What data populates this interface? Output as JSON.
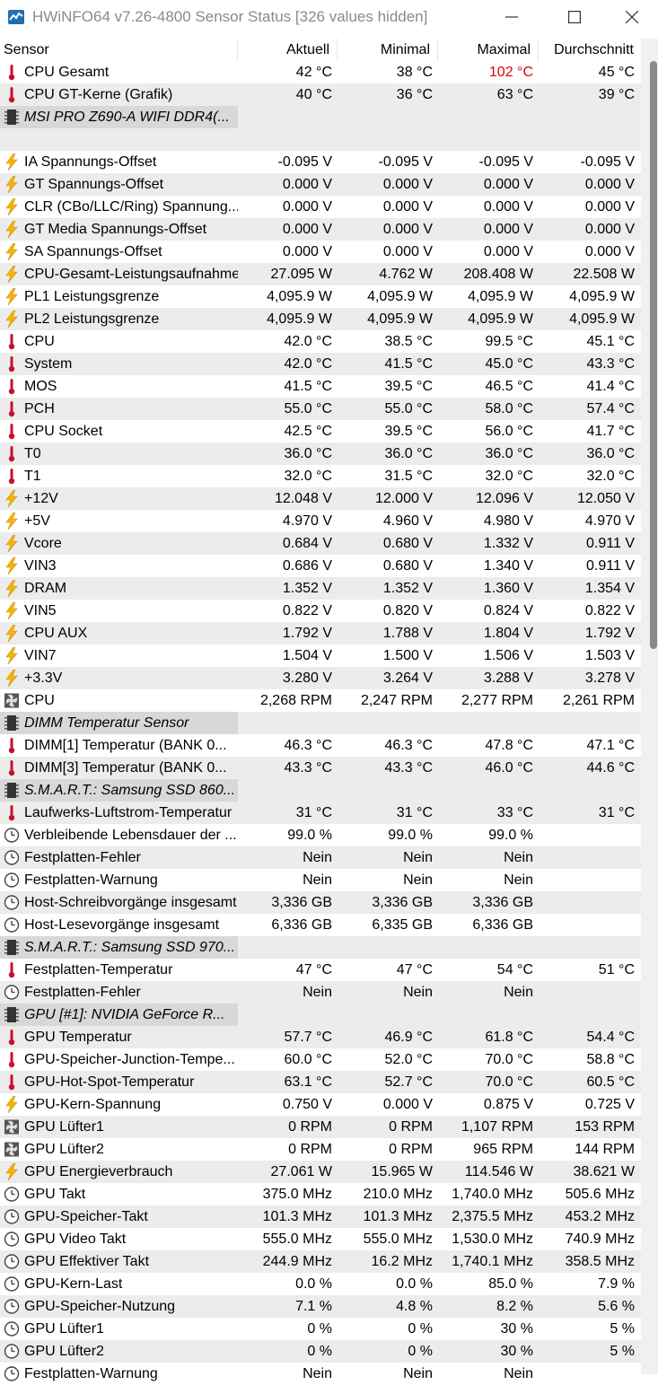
{
  "window": {
    "title": "HWiNFO64 v7.26-4800 Sensor Status [326 values hidden]"
  },
  "columns": [
    "Sensor",
    "Aktuell",
    "Minimal",
    "Maximal",
    "Durchschnitt"
  ],
  "colors": {
    "max_alert": "#e00000",
    "thermo": "#c8102e",
    "bolt": "#f2b705"
  },
  "rows": [
    {
      "icon": "thermometer-icon",
      "name": "CPU Gesamt",
      "v": [
        "42 °C",
        "38 °C",
        "102 °C",
        "45 °C"
      ],
      "alert": 2
    },
    {
      "icon": "thermometer-icon",
      "name": "CPU GT-Kerne (Grafik)",
      "v": [
        "40 °C",
        "36 °C",
        "63 °C",
        "39 °C"
      ]
    },
    {
      "icon": "chip-icon",
      "name": "MSI PRO Z690-A WIFI DDR4(...",
      "group": true,
      "v": [
        "",
        "",
        "",
        ""
      ]
    },
    {
      "icon": "",
      "name": "",
      "v": [
        "",
        "",
        "",
        ""
      ]
    },
    {
      "icon": "bolt-icon",
      "name": "IA Spannungs-Offset",
      "v": [
        "-0.095 V",
        "-0.095 V",
        "-0.095 V",
        "-0.095 V"
      ]
    },
    {
      "icon": "bolt-icon",
      "name": "GT Spannungs-Offset",
      "v": [
        "0.000 V",
        "0.000 V",
        "0.000 V",
        "0.000 V"
      ]
    },
    {
      "icon": "bolt-icon",
      "name": "CLR (CBo/LLC/Ring) Spannung...",
      "v": [
        "0.000 V",
        "0.000 V",
        "0.000 V",
        "0.000 V"
      ]
    },
    {
      "icon": "bolt-icon",
      "name": "GT Media Spannungs-Offset",
      "v": [
        "0.000 V",
        "0.000 V",
        "0.000 V",
        "0.000 V"
      ]
    },
    {
      "icon": "bolt-icon",
      "name": "SA Spannungs-Offset",
      "v": [
        "0.000 V",
        "0.000 V",
        "0.000 V",
        "0.000 V"
      ]
    },
    {
      "icon": "bolt-icon",
      "name": "CPU-Gesamt-Leistungsaufnahme",
      "v": [
        "27.095 W",
        "4.762 W",
        "208.408 W",
        "22.508 W"
      ]
    },
    {
      "icon": "bolt-icon",
      "name": "PL1 Leistungsgrenze",
      "v": [
        "4,095.9 W",
        "4,095.9 W",
        "4,095.9 W",
        "4,095.9 W"
      ]
    },
    {
      "icon": "bolt-icon",
      "name": "PL2 Leistungsgrenze",
      "v": [
        "4,095.9 W",
        "4,095.9 W",
        "4,095.9 W",
        "4,095.9 W"
      ]
    },
    {
      "icon": "thermometer-icon",
      "name": "CPU",
      "v": [
        "42.0 °C",
        "38.5 °C",
        "99.5 °C",
        "45.1 °C"
      ]
    },
    {
      "icon": "thermometer-icon",
      "name": "System",
      "v": [
        "42.0 °C",
        "41.5 °C",
        "45.0 °C",
        "43.3 °C"
      ]
    },
    {
      "icon": "thermometer-icon",
      "name": "MOS",
      "v": [
        "41.5 °C",
        "39.5 °C",
        "46.5 °C",
        "41.4 °C"
      ]
    },
    {
      "icon": "thermometer-icon",
      "name": "PCH",
      "v": [
        "55.0 °C",
        "55.0 °C",
        "58.0 °C",
        "57.4 °C"
      ]
    },
    {
      "icon": "thermometer-icon",
      "name": "CPU Socket",
      "v": [
        "42.5 °C",
        "39.5 °C",
        "56.0 °C",
        "41.7 °C"
      ]
    },
    {
      "icon": "thermometer-icon",
      "name": "T0",
      "v": [
        "36.0 °C",
        "36.0 °C",
        "36.0 °C",
        "36.0 °C"
      ]
    },
    {
      "icon": "thermometer-icon",
      "name": "T1",
      "v": [
        "32.0 °C",
        "31.5 °C",
        "32.0 °C",
        "32.0 °C"
      ]
    },
    {
      "icon": "bolt-icon",
      "name": "+12V",
      "v": [
        "12.048 V",
        "12.000 V",
        "12.096 V",
        "12.050 V"
      ]
    },
    {
      "icon": "bolt-icon",
      "name": "+5V",
      "v": [
        "4.970 V",
        "4.960 V",
        "4.980 V",
        "4.970 V"
      ]
    },
    {
      "icon": "bolt-icon",
      "name": "Vcore",
      "v": [
        "0.684 V",
        "0.680 V",
        "1.332 V",
        "0.911 V"
      ]
    },
    {
      "icon": "bolt-icon",
      "name": "VIN3",
      "v": [
        "0.686 V",
        "0.680 V",
        "1.340 V",
        "0.911 V"
      ]
    },
    {
      "icon": "bolt-icon",
      "name": "DRAM",
      "v": [
        "1.352 V",
        "1.352 V",
        "1.360 V",
        "1.354 V"
      ]
    },
    {
      "icon": "bolt-icon",
      "name": "VIN5",
      "v": [
        "0.822 V",
        "0.820 V",
        "0.824 V",
        "0.822 V"
      ]
    },
    {
      "icon": "bolt-icon",
      "name": "CPU AUX",
      "v": [
        "1.792 V",
        "1.788 V",
        "1.804 V",
        "1.792 V"
      ]
    },
    {
      "icon": "bolt-icon",
      "name": "VIN7",
      "v": [
        "1.504 V",
        "1.500 V",
        "1.506 V",
        "1.503 V"
      ]
    },
    {
      "icon": "bolt-icon",
      "name": "+3.3V",
      "v": [
        "3.280 V",
        "3.264 V",
        "3.288 V",
        "3.278 V"
      ]
    },
    {
      "icon": "fan-icon",
      "name": "CPU",
      "v": [
        "2,268 RPM",
        "2,247 RPM",
        "2,277 RPM",
        "2,261 RPM"
      ]
    },
    {
      "icon": "chip-icon",
      "name": "DIMM Temperatur Sensor",
      "group": true,
      "v": [
        "",
        "",
        "",
        ""
      ]
    },
    {
      "icon": "thermometer-icon",
      "name": "DIMM[1] Temperatur (BANK 0...",
      "v": [
        "46.3 °C",
        "46.3 °C",
        "47.8 °C",
        "47.1 °C"
      ]
    },
    {
      "icon": "thermometer-icon",
      "name": "DIMM[3] Temperatur (BANK 0...",
      "v": [
        "43.3 °C",
        "43.3 °C",
        "46.0 °C",
        "44.6 °C"
      ]
    },
    {
      "icon": "chip-icon",
      "name": "S.M.A.R.T.: Samsung SSD 860...",
      "group": true,
      "v": [
        "",
        "",
        "",
        ""
      ]
    },
    {
      "icon": "thermometer-icon",
      "name": "Laufwerks-Luftstrom-Temperatur",
      "v": [
        "31 °C",
        "31 °C",
        "33 °C",
        "31 °C"
      ]
    },
    {
      "icon": "clock-icon",
      "name": "Verbleibende Lebensdauer der ...",
      "v": [
        "99.0 %",
        "99.0 %",
        "99.0 %",
        ""
      ]
    },
    {
      "icon": "clock-icon",
      "name": "Festplatten-Fehler",
      "v": [
        "Nein",
        "Nein",
        "Nein",
        ""
      ]
    },
    {
      "icon": "clock-icon",
      "name": "Festplatten-Warnung",
      "v": [
        "Nein",
        "Nein",
        "Nein",
        ""
      ]
    },
    {
      "icon": "clock-icon",
      "name": "Host-Schreibvorgänge insgesamt",
      "v": [
        "3,336 GB",
        "3,336 GB",
        "3,336 GB",
        ""
      ]
    },
    {
      "icon": "clock-icon",
      "name": "Host-Lesevorgänge insgesamt",
      "v": [
        "6,336 GB",
        "6,335 GB",
        "6,336 GB",
        ""
      ]
    },
    {
      "icon": "chip-icon",
      "name": "S.M.A.R.T.: Samsung SSD 970...",
      "group": true,
      "v": [
        "",
        "",
        "",
        ""
      ]
    },
    {
      "icon": "thermometer-icon",
      "name": "Festplatten-Temperatur",
      "v": [
        "47 °C",
        "47 °C",
        "54 °C",
        "51 °C"
      ]
    },
    {
      "icon": "clock-icon",
      "name": "Festplatten-Fehler",
      "v": [
        "Nein",
        "Nein",
        "Nein",
        ""
      ]
    },
    {
      "icon": "chip-icon",
      "name": "GPU [#1]: NVIDIA GeForce R...",
      "group": true,
      "v": [
        "",
        "",
        "",
        ""
      ]
    },
    {
      "icon": "thermometer-icon",
      "name": "GPU Temperatur",
      "v": [
        "57.7 °C",
        "46.9 °C",
        "61.8 °C",
        "54.4 °C"
      ]
    },
    {
      "icon": "thermometer-icon",
      "name": "GPU-Speicher-Junction-Tempe...",
      "v": [
        "60.0 °C",
        "52.0 °C",
        "70.0 °C",
        "58.8 °C"
      ]
    },
    {
      "icon": "thermometer-icon",
      "name": "GPU-Hot-Spot-Temperatur",
      "v": [
        "63.1 °C",
        "52.7 °C",
        "70.0 °C",
        "60.5 °C"
      ]
    },
    {
      "icon": "bolt-icon",
      "name": "GPU-Kern-Spannung",
      "v": [
        "0.750 V",
        "0.000 V",
        "0.875 V",
        "0.725 V"
      ]
    },
    {
      "icon": "fan-icon",
      "name": "GPU Lüfter1",
      "v": [
        "0 RPM",
        "0 RPM",
        "1,107 RPM",
        "153 RPM"
      ]
    },
    {
      "icon": "fan-icon",
      "name": "GPU Lüfter2",
      "v": [
        "0 RPM",
        "0 RPM",
        "965 RPM",
        "144 RPM"
      ]
    },
    {
      "icon": "bolt-icon",
      "name": "GPU Energieverbrauch",
      "v": [
        "27.061 W",
        "15.965 W",
        "114.546 W",
        "38.621 W"
      ]
    },
    {
      "icon": "clock-icon",
      "name": "GPU Takt",
      "v": [
        "375.0 MHz",
        "210.0 MHz",
        "1,740.0 MHz",
        "505.6 MHz"
      ]
    },
    {
      "icon": "clock-icon",
      "name": "GPU-Speicher-Takt",
      "v": [
        "101.3 MHz",
        "101.3 MHz",
        "2,375.5 MHz",
        "453.2 MHz"
      ]
    },
    {
      "icon": "clock-icon",
      "name": "GPU Video Takt",
      "v": [
        "555.0 MHz",
        "555.0 MHz",
        "1,530.0 MHz",
        "740.9 MHz"
      ]
    },
    {
      "icon": "clock-icon",
      "name": "GPU Effektiver Takt",
      "v": [
        "244.9 MHz",
        "16.2 MHz",
        "1,740.1 MHz",
        "358.5 MHz"
      ]
    },
    {
      "icon": "clock-icon",
      "name": "GPU-Kern-Last",
      "v": [
        "0.0 %",
        "0.0 %",
        "85.0 %",
        "7.9 %"
      ]
    },
    {
      "icon": "clock-icon",
      "name": "GPU-Speicher-Nutzung",
      "v": [
        "7.1 %",
        "4.8 %",
        "8.2 %",
        "5.6 %"
      ]
    },
    {
      "icon": "clock-icon",
      "name": "GPU Lüfter1",
      "v": [
        "0 %",
        "0 %",
        "30 %",
        "5 %"
      ]
    },
    {
      "icon": "clock-icon",
      "name": "GPU Lüfter2",
      "v": [
        "0 %",
        "0 %",
        "30 %",
        "5 %"
      ]
    },
    {
      "icon": "clock-icon",
      "name": "Festplatten-Warnung",
      "v": [
        "Nein",
        "Nein",
        "Nein",
        ""
      ]
    }
  ]
}
